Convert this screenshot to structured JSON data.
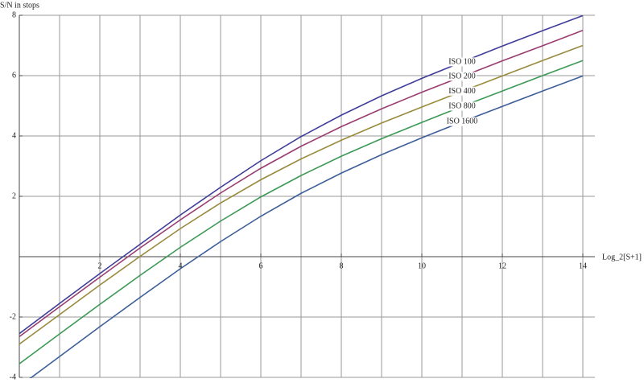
{
  "chart_data": {
    "type": "line",
    "y_label": "S/N in stops",
    "x_label": "Log_2[S+1]",
    "x": [
      0,
      1,
      2,
      3,
      4,
      5,
      6,
      7,
      8,
      9,
      10,
      11,
      12,
      13,
      14
    ],
    "series": [
      {
        "name": "ISO 100",
        "color": "#3f3d99",
        "values": [
          -2.55,
          -1.55,
          -0.56,
          0.41,
          1.38,
          2.3,
          3.18,
          3.98,
          4.69,
          5.33,
          5.91,
          6.45,
          6.98,
          7.49,
          7.99
        ]
      },
      {
        "name": "ISO 200",
        "color": "#993d71",
        "values": [
          -2.65,
          -1.66,
          -0.68,
          0.29,
          1.22,
          2.11,
          2.93,
          3.66,
          4.31,
          4.9,
          5.45,
          5.97,
          6.49,
          6.99,
          7.5
        ]
      },
      {
        "name": "ISO 400",
        "color": "#998b3d",
        "values": [
          -2.9,
          -1.92,
          -0.94,
          0.01,
          0.93,
          1.78,
          2.55,
          3.24,
          3.86,
          4.43,
          4.96,
          5.48,
          5.99,
          6.5,
          7.0
        ]
      },
      {
        "name": "ISO 800",
        "color": "#3d9956",
        "values": [
          -3.55,
          -2.56,
          -1.58,
          -0.62,
          0.31,
          1.18,
          1.98,
          2.69,
          3.33,
          3.91,
          4.45,
          4.98,
          5.49,
          6.0,
          6.5
        ]
      },
      {
        "name": "ISO 1600",
        "color": "#3d5e99",
        "values": [
          -4.3,
          -3.31,
          -2.32,
          -1.35,
          -0.4,
          0.5,
          1.34,
          2.1,
          2.77,
          3.38,
          3.94,
          4.47,
          4.98,
          5.49,
          5.99
        ]
      }
    ],
    "xlim": [
      0,
      14.3
    ],
    "ylim": [
      -4,
      8
    ],
    "xticks": [
      2,
      4,
      6,
      8,
      10,
      12,
      14
    ],
    "yticks": [
      -4,
      -2,
      2,
      4,
      6,
      8
    ],
    "x_gridlines": [
      1,
      2,
      3,
      4,
      5,
      6,
      7,
      8,
      9,
      10,
      11,
      12,
      13,
      14
    ],
    "grid": true
  }
}
